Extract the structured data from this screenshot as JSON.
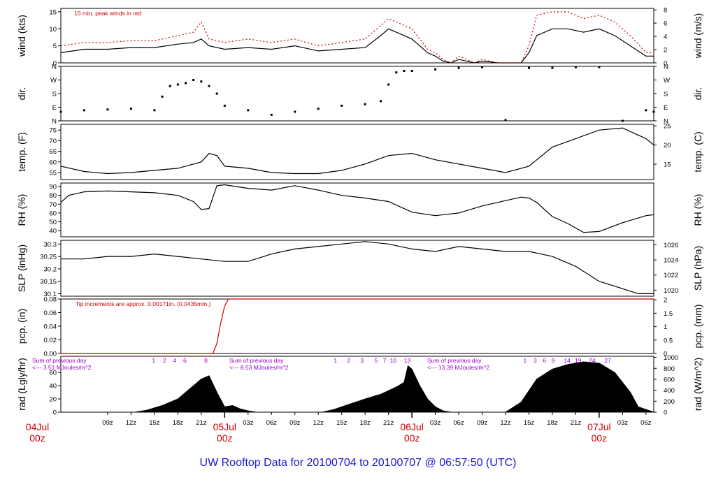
{
  "title": "UW Rooftop Data for 20100704  to  20100707 @ 06:57:50  (UTC)",
  "colors": {
    "frame": "#000000",
    "peak": "#cc0000",
    "title": "#1a1acc",
    "purple": "#9900cc",
    "day": "#cc0000"
  },
  "time_axis": {
    "range_hours": [
      3,
      79
    ],
    "hour_ticks": [
      {
        "h": 9,
        "label": "09z"
      },
      {
        "h": 12,
        "label": "12z"
      },
      {
        "h": 15,
        "label": "15z"
      },
      {
        "h": 18,
        "label": "18z"
      },
      {
        "h": 21,
        "label": "21z"
      },
      {
        "h": 27,
        "label": "03z"
      },
      {
        "h": 30,
        "label": "06z"
      },
      {
        "h": 33,
        "label": "09z"
      },
      {
        "h": 36,
        "label": "12z"
      },
      {
        "h": 39,
        "label": "15z"
      },
      {
        "h": 42,
        "label": "18z"
      },
      {
        "h": 45,
        "label": "21z"
      },
      {
        "h": 51,
        "label": "03z"
      },
      {
        "h": 54,
        "label": "06z"
      },
      {
        "h": 57,
        "label": "09z"
      },
      {
        "h": 60,
        "label": "12z"
      },
      {
        "h": 63,
        "label": "15z"
      },
      {
        "h": 66,
        "label": "18z"
      },
      {
        "h": 69,
        "label": "21z"
      },
      {
        "h": 75,
        "label": "03z"
      },
      {
        "h": 78,
        "label": "06z"
      }
    ],
    "days": [
      {
        "h": 0,
        "date": "04Jul",
        "time": "00z"
      },
      {
        "h": 24,
        "date": "05Jul",
        "time": "00z"
      },
      {
        "h": 48,
        "date": "06Jul",
        "time": "00z"
      },
      {
        "h": 72,
        "date": "07Jul",
        "time": "00z"
      }
    ]
  },
  "chart_data": [
    {
      "type": "line",
      "panel": "wind",
      "ylabel": "wind (kts)",
      "ylabel_right": "wind (m/s)",
      "ylim": [
        0,
        16
      ],
      "yticks": [
        0,
        5,
        10,
        15
      ],
      "right_ylim": [
        0,
        8.23
      ],
      "right_yticks": [
        0,
        2,
        4,
        6,
        8
      ],
      "annotation": "10 min. peak winds in red",
      "series": [
        {
          "x": [
            3,
            6,
            9,
            12,
            15,
            18,
            20,
            21,
            22,
            24,
            27,
            30,
            33,
            36,
            39,
            42,
            44,
            45,
            46,
            48,
            49,
            50,
            51,
            52,
            53,
            54,
            55,
            56,
            57,
            58,
            59,
            60,
            61,
            62,
            63,
            64,
            66,
            68,
            70,
            72,
            74,
            76,
            78,
            79
          ],
          "y": [
            3,
            4,
            4,
            4.5,
            4.5,
            5.5,
            6,
            7,
            5,
            4,
            4.5,
            4,
            5,
            3.5,
            4,
            4.5,
            8,
            10,
            9,
            7,
            5,
            3,
            2,
            0.5,
            0,
            1,
            0.5,
            0,
            0.5,
            0.3,
            0,
            0,
            0,
            0,
            3,
            8,
            10,
            10,
            9,
            10,
            8,
            5,
            2,
            2
          ]
        },
        {
          "name": "10 min. peak winds",
          "x": [
            3,
            6,
            9,
            12,
            15,
            18,
            20,
            21,
            22,
            24,
            27,
            30,
            33,
            36,
            39,
            42,
            44,
            45,
            46,
            48,
            49,
            50,
            51,
            52,
            53,
            54,
            55,
            56,
            57,
            58,
            59,
            60,
            61,
            62,
            63,
            64,
            66,
            68,
            70,
            72,
            74,
            76,
            78,
            79
          ],
          "y": [
            5,
            6,
            6,
            6.5,
            6.5,
            8,
            9,
            12,
            7,
            6,
            7,
            6,
            7,
            5,
            6,
            7,
            11,
            13,
            12,
            10,
            7,
            4,
            3,
            1,
            0,
            2,
            1,
            0,
            1,
            0.5,
            0,
            0,
            0,
            0,
            5,
            14,
            15,
            15,
            13,
            14,
            12,
            8,
            3,
            3
          ]
        }
      ]
    },
    {
      "type": "scatter",
      "panel": "dir",
      "ylabel": "dir.",
      "ylabel_right": "dir.",
      "ylim": [
        0,
        360
      ],
      "yticklabels": [
        "N",
        "E",
        "S",
        "W",
        "N"
      ],
      "yticks": [
        0,
        90,
        180,
        270,
        360
      ],
      "series": [
        {
          "x": [
            3,
            6,
            9,
            12,
            15,
            16,
            17,
            18,
            19,
            20,
            21,
            22,
            23,
            24,
            27,
            30,
            33,
            36,
            39,
            42,
            44,
            45,
            46,
            47,
            48,
            51,
            54,
            57,
            60,
            63,
            66,
            69,
            72,
            75,
            78,
            79
          ],
          "y": [
            60,
            70,
            75,
            80,
            70,
            160,
            230,
            240,
            250,
            270,
            260,
            230,
            180,
            100,
            70,
            40,
            60,
            80,
            100,
            110,
            130,
            240,
            320,
            330,
            330,
            340,
            350,
            355,
            5,
            350,
            350,
            355,
            355,
            0,
            70,
            60
          ]
        }
      ]
    },
    {
      "type": "line",
      "panel": "temp",
      "ylabel": "temp. (F)",
      "ylabel_right": "temp. (C)",
      "ylim": [
        51.7,
        77.7
      ],
      "yticks": [
        55,
        60,
        65,
        70,
        75
      ],
      "right_ylim": [
        11,
        25.4
      ],
      "right_yticks": [
        15,
        20,
        25
      ],
      "series": [
        {
          "x": [
            3,
            6,
            9,
            12,
            15,
            18,
            21,
            22,
            23,
            24,
            27,
            30,
            33,
            36,
            39,
            42,
            45,
            48,
            51,
            54,
            57,
            60,
            63,
            66,
            69,
            72,
            75,
            78,
            79
          ],
          "y": [
            58,
            55.5,
            54.5,
            55,
            56,
            57,
            60,
            64,
            63,
            58,
            57,
            55,
            54.5,
            54.5,
            56,
            59,
            63,
            64,
            61,
            59,
            57,
            55,
            58,
            67,
            71,
            75,
            76,
            71,
            68
          ]
        }
      ]
    },
    {
      "type": "line",
      "panel": "rh",
      "ylabel": "RH (%)",
      "ylabel_right": "RH (%)",
      "ylim": [
        33,
        94
      ],
      "yticks": [
        40,
        50,
        60,
        70,
        80,
        90
      ],
      "series": [
        {
          "x": [
            3,
            4,
            6,
            9,
            12,
            15,
            18,
            20,
            21,
            22,
            23,
            24,
            27,
            30,
            33,
            36,
            39,
            42,
            45,
            48,
            51,
            54,
            57,
            60,
            62,
            63,
            64,
            66,
            68,
            69,
            70,
            72,
            75,
            78,
            79
          ],
          "y": [
            72,
            80,
            84,
            85,
            84,
            83,
            80,
            73,
            64,
            65,
            91,
            92,
            88,
            86,
            91,
            86,
            80,
            77,
            73,
            61,
            57,
            60,
            68,
            74,
            78,
            77,
            72,
            56,
            48,
            43,
            38,
            39,
            49,
            57,
            58
          ]
        }
      ]
    },
    {
      "type": "line",
      "panel": "slp",
      "ylabel": "SLP (inHg)",
      "ylabel_right": "SLP (hPa)",
      "ylim": [
        30.09,
        30.315
      ],
      "yticks": [
        30.1,
        30.15,
        30.2,
        30.25,
        30.3
      ],
      "right_ylim": [
        1019.2,
        1026.6
      ],
      "right_yticks": [
        1020,
        1022,
        1024,
        1026
      ],
      "series": [
        {
          "x": [
            3,
            6,
            9,
            12,
            15,
            18,
            21,
            24,
            27,
            30,
            33,
            36,
            39,
            42,
            45,
            48,
            51,
            54,
            57,
            60,
            63,
            66,
            69,
            72,
            75,
            77,
            79
          ],
          "y": [
            30.24,
            30.24,
            30.25,
            30.25,
            30.26,
            30.25,
            30.24,
            30.23,
            30.23,
            30.26,
            30.28,
            30.29,
            30.3,
            30.31,
            30.3,
            30.28,
            30.27,
            30.29,
            30.28,
            30.27,
            30.27,
            30.25,
            30.21,
            30.15,
            30.12,
            30.1,
            30.1
          ]
        }
      ]
    },
    {
      "type": "line",
      "panel": "pcp",
      "ylabel": "pcp. (in)",
      "ylabel_right": "pcp. (mm)",
      "ylim": [
        0,
        0.08
      ],
      "yticks": [
        0.0,
        0.02,
        0.04,
        0.06,
        0.08
      ],
      "yticklabels": [
        "0.00",
        "0.02",
        "0.04",
        "0.06",
        "0.08"
      ],
      "right_ylim": [
        0,
        2.03
      ],
      "right_yticks": [
        0,
        0.5,
        1,
        1.5,
        2
      ],
      "annotation": "Tip increments are approx. 0.00171in. (0.0435mm.)",
      "series": [
        {
          "x": [
            3,
            22.5,
            23,
            23.5,
            24,
            24.5,
            79
          ],
          "y": [
            0,
            0,
            0.015,
            0.045,
            0.07,
            0.08,
            0.08
          ]
        }
      ]
    },
    {
      "type": "area",
      "panel": "rad",
      "ylabel": "rad (Lgly/hr)",
      "ylabel_right": "rad (W/m^2)",
      "ylim": [
        0,
        84.5
      ],
      "yticks": [
        0,
        20,
        40,
        60
      ],
      "right_ylim": [
        0,
        1020
      ],
      "right_yticks": [
        0,
        200,
        400,
        600,
        800,
        1000
      ],
      "series": [
        {
          "x": [
            3,
            12.5,
            14,
            16,
            18,
            19,
            20,
            21,
            22,
            23,
            24,
            25,
            26,
            27,
            28,
            36.5,
            38,
            40,
            42,
            44,
            46,
            47,
            47.5,
            48,
            49,
            50,
            51,
            52,
            53,
            60,
            62,
            64,
            66,
            68,
            70,
            72,
            74,
            76,
            77,
            79
          ],
          "y": [
            0,
            0,
            3,
            10,
            20,
            30,
            40,
            50,
            55,
            30,
            8,
            10,
            5,
            2,
            0,
            0,
            4,
            12,
            20,
            27,
            38,
            45,
            70,
            65,
            40,
            20,
            8,
            2,
            0,
            0,
            15,
            50,
            65,
            72,
            76,
            74,
            60,
            30,
            8,
            0
          ]
        }
      ],
      "day_sums": [
        {
          "line1": "Sum of previous day",
          "line2": "<--- 3.51 MJoules/m^2"
        },
        {
          "line1": "Sum of previous day",
          "line2": "<--- 8.53 MJoules/m^2"
        },
        {
          "line1": "Sum of previous day",
          "line2": "<--- 13.39 MJoules/m^2"
        }
      ],
      "hour_marks": [
        {
          "h": 14.9,
          "label": "1"
        },
        {
          "h": 16.3,
          "label": "2"
        },
        {
          "h": 17.6,
          "label": "4"
        },
        {
          "h": 18.9,
          "label": "6"
        },
        {
          "h": 21.6,
          "label": "8"
        },
        {
          "h": 38.2,
          "label": "1"
        },
        {
          "h": 39.9,
          "label": "2"
        },
        {
          "h": 41.6,
          "label": "3"
        },
        {
          "h": 43.4,
          "label": "5"
        },
        {
          "h": 44.5,
          "label": "7"
        },
        {
          "h": 45.6,
          "label": "10"
        },
        {
          "h": 47.4,
          "label": "13"
        },
        {
          "h": 62.5,
          "label": "1"
        },
        {
          "h": 63.8,
          "label": "3"
        },
        {
          "h": 65.0,
          "label": "6"
        },
        {
          "h": 66.1,
          "label": "9"
        },
        {
          "h": 67.9,
          "label": "14"
        },
        {
          "h": 69.3,
          "label": "19"
        },
        {
          "h": 71.1,
          "label": "24"
        },
        {
          "h": 73.1,
          "label": "27"
        }
      ]
    }
  ]
}
